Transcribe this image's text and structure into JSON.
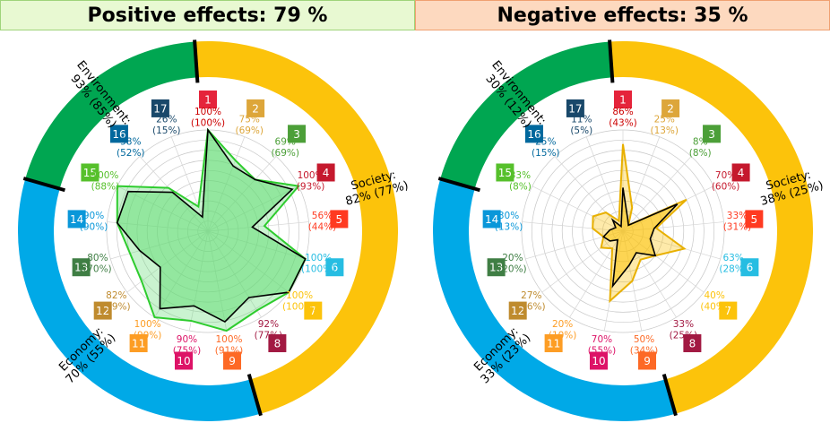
{
  "chart_data": [
    {
      "type": "radar",
      "title": "Positive effects: 79 %",
      "sectors": [
        {
          "label": "Society:",
          "value": "82% (77%)",
          "color": "#fcc30b"
        },
        {
          "label": "Economy:",
          "value": "70% (55%)",
          "color": "#00a9e7"
        },
        {
          "label": "Environment:",
          "value": "93% (85%)",
          "color": "#00a651"
        }
      ],
      "axes": [
        "1",
        "2",
        "3",
        "4",
        "5",
        "6",
        "7",
        "8",
        "9",
        "10",
        "11",
        "12",
        "13",
        "14",
        "15",
        "16",
        "17"
      ],
      "series": [
        {
          "values": [
            100,
            75,
            69,
            100,
            56,
            100,
            100,
            92,
            100,
            90,
            100,
            82,
            80,
            90,
            100,
            58,
            26
          ]
        },
        {
          "values": [
            100,
            69,
            69,
            93,
            44,
            100,
            100,
            77,
            91,
            75,
            90,
            59,
            70,
            90,
            88,
            52,
            15
          ]
        }
      ],
      "labels": [
        "100%\n(100%)",
        "75%\n(69%)",
        "69%\n(69%)",
        "100%\n(93%)",
        "56%\n(44%)",
        "100%\n(100%)",
        "100%\n(100%)",
        "92%\n(77%)",
        "100%\n(91%)",
        "90%\n(75%)",
        "100%\n(90%)",
        "82%\n(59%)",
        "80%\n(70%)",
        "90%\n(90%)",
        "100%\n(88%)",
        "58%\n(52%)",
        "26%\n(15%)"
      ],
      "rlim": [
        0,
        100
      ]
    },
    {
      "type": "radar",
      "title": "Negative effects: 35 %",
      "sectors": [
        {
          "label": "Society:",
          "value": "38% (25%)",
          "color": "#fcc30b"
        },
        {
          "label": "Economy:",
          "value": "33% (23%)",
          "color": "#00a9e7"
        },
        {
          "label": "Environment:",
          "value": "30% (12%)",
          "color": "#00a651"
        }
      ],
      "axes": [
        "1",
        "2",
        "3",
        "4",
        "5",
        "6",
        "7",
        "8",
        "9",
        "10",
        "11",
        "12",
        "13",
        "14",
        "15",
        "16",
        "17"
      ],
      "series": [
        {
          "values": [
            86,
            25,
            8,
            70,
            33,
            63,
            40,
            33,
            50,
            70,
            20,
            27,
            20,
            30,
            33,
            25,
            11
          ]
        },
        {
          "values": [
            43,
            13,
            8,
            60,
            31,
            28,
            40,
            25,
            34,
            55,
            10,
            16,
            20,
            13,
            8,
            15,
            5
          ]
        }
      ],
      "labels": [
        "86%\n(43%)",
        "25%\n(13%)",
        "8%\n(8%)",
        "70%\n(60%)",
        "33%\n(31%)",
        "63%\n(28%)",
        "40%\n(40%)",
        "33%\n(25%)",
        "50%\n(34%)",
        "70%\n(55%)",
        "20%\n(10%)",
        "27%\n(16%)",
        "20%\n(20%)",
        "30%\n(13%)",
        "33%\n(8%)",
        "25%\n(15%)",
        "11%\n(5%)"
      ],
      "rlim": [
        0,
        100
      ]
    }
  ],
  "sdg_colors": [
    "#e5243b",
    "#dda63a",
    "#4c9f38",
    "#c5192d",
    "#ff3a21",
    "#26bde2",
    "#fcc30b",
    "#a21942",
    "#fd6925",
    "#dd1367",
    "#fd9d24",
    "#bf8b2e",
    "#3f7e44",
    "#0a97d9",
    "#56c02b",
    "#00689d",
    "#19486a"
  ],
  "label_colors": [
    "#cc0000",
    "#dda63a",
    "#4c9f38",
    "#c5192d",
    "#ff3a21",
    "#26bde2",
    "#fcc30b",
    "#a21942",
    "#fd6925",
    "#dd1367",
    "#fd9d24",
    "#bf8b2e",
    "#3f7e44",
    "#0a97d9",
    "#56c02b",
    "#00689d",
    "#19486a"
  ],
  "fill_colors": {
    "positive": "#66dd77",
    "negative": "#fcc30b"
  },
  "line_colors": {
    "positive": "#2ecc2e",
    "negative": "#e8b000"
  }
}
